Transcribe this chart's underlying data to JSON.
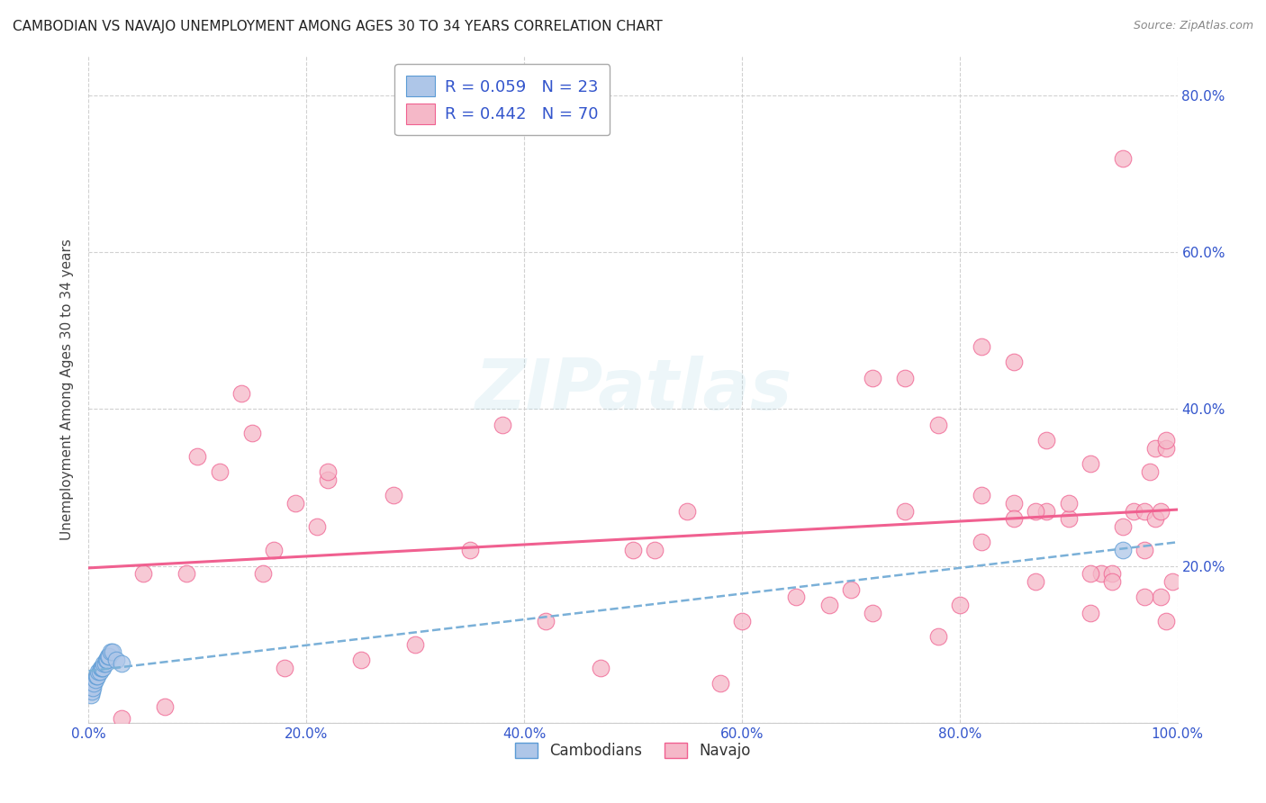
{
  "title": "CAMBODIAN VS NAVAJO UNEMPLOYMENT AMONG AGES 30 TO 34 YEARS CORRELATION CHART",
  "source": "Source: ZipAtlas.com",
  "ylabel": "Unemployment Among Ages 30 to 34 years",
  "xlim": [
    0,
    1.0
  ],
  "ylim": [
    0,
    0.85
  ],
  "xticks": [
    0.0,
    0.2,
    0.4,
    0.6,
    0.8,
    1.0
  ],
  "xticklabels": [
    "0.0%",
    "20.0%",
    "40.0%",
    "60.0%",
    "80.0%",
    "100.0%"
  ],
  "yticks": [
    0.0,
    0.2,
    0.4,
    0.6,
    0.8
  ],
  "yticklabels_right": [
    "",
    "20.0%",
    "40.0%",
    "60.0%",
    "80.0%"
  ],
  "cambodian_color": "#aec6e8",
  "navajo_color": "#f5b8c8",
  "cambodian_edge_color": "#5b9bd5",
  "navajo_edge_color": "#f06090",
  "cambodian_line_color": "#7ab0d8",
  "navajo_line_color": "#f06090",
  "background_color": "#ffffff",
  "grid_color": "#cccccc",
  "legend_color": "#3355cc",
  "cambodian_R": 0.059,
  "cambodian_N": 23,
  "navajo_R": 0.442,
  "navajo_N": 70,
  "cambodian_x": [
    0.002,
    0.003,
    0.004,
    0.005,
    0.006,
    0.007,
    0.008,
    0.009,
    0.01,
    0.011,
    0.012,
    0.013,
    0.014,
    0.015,
    0.016,
    0.017,
    0.018,
    0.019,
    0.02,
    0.022,
    0.025,
    0.03,
    0.95
  ],
  "cambodian_y": [
    0.035,
    0.04,
    0.045,
    0.05,
    0.055,
    0.06,
    0.06,
    0.065,
    0.065,
    0.07,
    0.07,
    0.07,
    0.075,
    0.075,
    0.08,
    0.08,
    0.085,
    0.085,
    0.09,
    0.09,
    0.08,
    0.075,
    0.22
  ],
  "navajo_x": [
    0.03,
    0.05,
    0.07,
    0.09,
    0.1,
    0.12,
    0.14,
    0.15,
    0.16,
    0.17,
    0.18,
    0.19,
    0.21,
    0.22,
    0.22,
    0.25,
    0.28,
    0.3,
    0.35,
    0.38,
    0.42,
    0.47,
    0.5,
    0.52,
    0.55,
    0.58,
    0.6,
    0.65,
    0.68,
    0.7,
    0.72,
    0.75,
    0.78,
    0.8,
    0.82,
    0.85,
    0.87,
    0.88,
    0.9,
    0.92,
    0.93,
    0.94,
    0.95,
    0.96,
    0.97,
    0.975,
    0.98,
    0.985,
    0.99,
    0.995,
    0.82,
    0.85,
    0.88,
    0.9,
    0.92,
    0.95,
    0.97,
    0.98,
    0.985,
    0.99,
    0.72,
    0.75,
    0.78,
    0.82,
    0.85,
    0.87,
    0.92,
    0.94,
    0.97,
    0.99
  ],
  "navajo_y": [
    0.005,
    0.19,
    0.02,
    0.19,
    0.34,
    0.32,
    0.42,
    0.37,
    0.19,
    0.22,
    0.07,
    0.28,
    0.25,
    0.31,
    0.32,
    0.08,
    0.29,
    0.1,
    0.22,
    0.38,
    0.13,
    0.07,
    0.22,
    0.22,
    0.27,
    0.05,
    0.13,
    0.16,
    0.15,
    0.17,
    0.14,
    0.27,
    0.11,
    0.15,
    0.23,
    0.28,
    0.18,
    0.27,
    0.26,
    0.14,
    0.19,
    0.19,
    0.72,
    0.27,
    0.27,
    0.32,
    0.26,
    0.27,
    0.13,
    0.18,
    0.48,
    0.46,
    0.36,
    0.28,
    0.33,
    0.25,
    0.22,
    0.35,
    0.16,
    0.35,
    0.44,
    0.44,
    0.38,
    0.29,
    0.26,
    0.27,
    0.19,
    0.18,
    0.16,
    0.36
  ]
}
